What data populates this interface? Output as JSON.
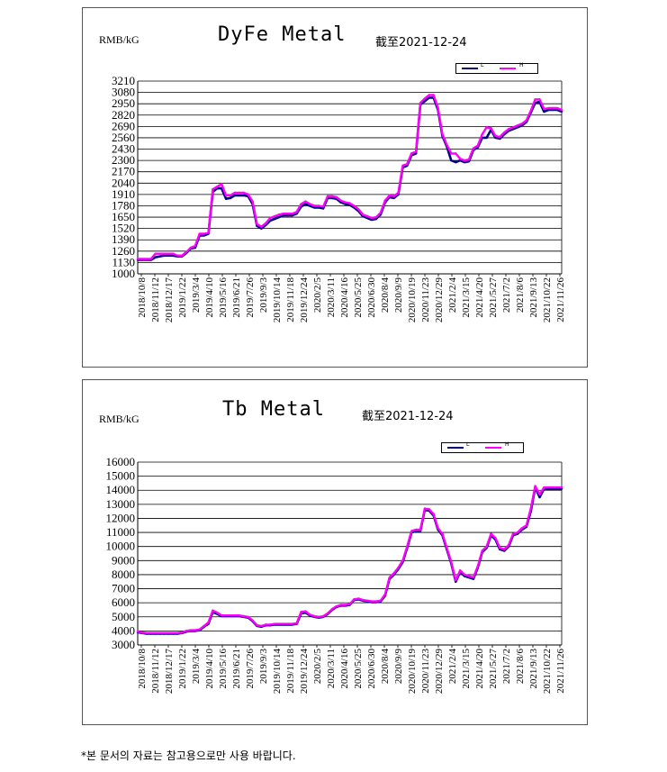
{
  "colors": {
    "L": "#000080",
    "H": "#ff00ff",
    "grid": "#000000",
    "axis": "#000000"
  },
  "footnote": "*본 문서의 자료는 참고용으로만 사용 바랍니다.",
  "chart_data": [
    {
      "type": "line",
      "title": "DyFe Metal",
      "unit_label": "RMB/kG",
      "as_of": "截至2021-12-24",
      "legend": [
        "L",
        "H"
      ],
      "ylim": [
        1000,
        3210
      ],
      "yticks": [
        1000,
        1130,
        1260,
        1390,
        1520,
        1650,
        1780,
        1910,
        2040,
        2170,
        2300,
        2430,
        2560,
        2690,
        2820,
        2950,
        3080,
        3210
      ],
      "xticks": [
        "2018/10/8",
        "2018/11/12",
        "2018/12/17",
        "2019/1/22",
        "2019/3/4",
        "2019/4/10",
        "2019/5/16",
        "2019/6/21",
        "2019/7/26",
        "2019/9/3",
        "2019/10/14",
        "2019/11/18",
        "2019/12/24",
        "2020/2/5",
        "2020/3/11",
        "2020/4/16",
        "2020/5/25",
        "2020/6/30",
        "2020/8/4",
        "2020/9/9",
        "2020/10/19",
        "2020/11/23",
        "2020/12/29",
        "2021/2/4",
        "2021/3/15",
        "2021/4/20",
        "2021/5/27",
        "2021/7/2",
        "2021/8/6",
        "2021/9/13",
        "2021/10/22",
        "2021/11/26"
      ],
      "x": [
        0,
        1,
        2,
        3,
        4,
        5,
        6,
        7,
        8,
        9,
        10,
        11,
        12,
        13,
        14,
        15,
        16,
        17,
        18,
        19,
        20,
        21,
        22,
        23,
        24,
        25,
        26,
        27,
        28,
        29,
        30,
        31,
        32,
        33,
        34,
        35,
        36,
        37,
        38,
        39,
        40,
        41,
        42,
        43,
        44,
        45,
        46,
        47,
        48,
        49,
        50,
        51,
        52,
        53,
        54,
        55,
        56,
        57,
        58,
        59,
        60,
        61,
        62,
        63,
        64,
        65,
        66,
        67,
        68,
        69,
        70,
        71,
        72,
        73,
        74,
        75,
        76,
        77,
        78,
        79,
        80,
        81,
        82,
        83,
        84,
        85,
        86,
        87,
        88,
        89,
        90,
        91,
        92,
        93,
        94,
        95,
        96
      ],
      "series": [
        {
          "name": "L",
          "values": [
            1160,
            1160,
            1160,
            1160,
            1190,
            1200,
            1210,
            1210,
            1210,
            1200,
            1200,
            1240,
            1290,
            1300,
            1440,
            1440,
            1460,
            1940,
            1980,
            1980,
            1860,
            1870,
            1900,
            1900,
            1900,
            1890,
            1800,
            1550,
            1520,
            1560,
            1610,
            1630,
            1650,
            1670,
            1670,
            1670,
            1690,
            1770,
            1800,
            1780,
            1760,
            1760,
            1750,
            1870,
            1870,
            1860,
            1820,
            1800,
            1790,
            1760,
            1720,
            1660,
            1640,
            1620,
            1630,
            1680,
            1820,
            1880,
            1870,
            1910,
            2220,
            2240,
            2360,
            2380,
            2940,
            2980,
            3020,
            3020,
            2880,
            2580,
            2460,
            2300,
            2280,
            2300,
            2280,
            2290,
            2420,
            2450,
            2560,
            2560,
            2650,
            2560,
            2550,
            2600,
            2640,
            2660,
            2680,
            2700,
            2740,
            2850,
            2960,
            2970,
            2860,
            2880,
            2880,
            2880,
            2860
          ]
        },
        {
          "name": "H",
          "values": [
            1170,
            1170,
            1170,
            1170,
            1230,
            1230,
            1230,
            1230,
            1230,
            1210,
            1210,
            1250,
            1300,
            1320,
            1460,
            1460,
            1470,
            1970,
            2000,
            2030,
            1900,
            1900,
            1930,
            1930,
            1930,
            1910,
            1830,
            1570,
            1540,
            1580,
            1640,
            1660,
            1680,
            1690,
            1690,
            1690,
            1710,
            1800,
            1830,
            1800,
            1780,
            1780,
            1770,
            1890,
            1890,
            1880,
            1840,
            1820,
            1810,
            1780,
            1740,
            1680,
            1660,
            1640,
            1650,
            1700,
            1840,
            1900,
            1890,
            1930,
            2240,
            2260,
            2380,
            2400,
            2960,
            3010,
            3050,
            3050,
            2900,
            2600,
            2480,
            2380,
            2380,
            2320,
            2300,
            2310,
            2440,
            2470,
            2600,
            2680,
            2670,
            2580,
            2570,
            2620,
            2660,
            2680,
            2700,
            2720,
            2760,
            2870,
            3000,
            3000,
            2890,
            2900,
            2900,
            2900,
            2880
          ]
        }
      ]
    },
    {
      "type": "line",
      "title": "Tb Metal",
      "unit_label": "RMB/kG",
      "as_of": "截至2021-12-24",
      "legend": [
        "L",
        "H"
      ],
      "ylim": [
        3000,
        16000
      ],
      "yticks": [
        3000,
        4000,
        5000,
        6000,
        7000,
        8000,
        9000,
        10000,
        11000,
        12000,
        13000,
        14000,
        15000,
        16000
      ],
      "xticks": [
        "2018/10/8",
        "2018/11/12",
        "2018/12/17",
        "2019/1/22",
        "2019/3/4",
        "2019/4/10",
        "2019/5/16",
        "2019/6/21",
        "2019/7/26",
        "2019/9/3",
        "2019/10/14",
        "2019/11/18",
        "2019/12/24",
        "2020/2/5",
        "2020/3/11",
        "2020/4/16",
        "2020/5/25",
        "2020/6/30",
        "2020/8/4",
        "2020/9/9",
        "2020/10/19",
        "2020/11/23",
        "2020/12/29",
        "2021/2/4",
        "2021/3/15",
        "2021/4/20",
        "2021/5/27",
        "2021/7/2",
        "2021/8/6",
        "2021/9/13",
        "2021/10/22",
        "2021/11/26"
      ],
      "x": [
        0,
        1,
        2,
        3,
        4,
        5,
        6,
        7,
        8,
        9,
        10,
        11,
        12,
        13,
        14,
        15,
        16,
        17,
        18,
        19,
        20,
        21,
        22,
        23,
        24,
        25,
        26,
        27,
        28,
        29,
        30,
        31,
        32,
        33,
        34,
        35,
        36,
        37,
        38,
        39,
        40,
        41,
        42,
        43,
        44,
        45,
        46,
        47,
        48,
        49,
        50,
        51,
        52,
        53,
        54,
        55,
        56,
        57,
        58,
        59,
        60,
        61,
        62,
        63,
        64,
        65,
        66,
        67,
        68,
        69,
        70,
        71,
        72,
        73,
        74,
        75,
        76,
        77,
        78,
        79,
        80,
        81,
        82,
        83,
        84,
        85,
        86,
        87,
        88,
        89,
        90,
        91,
        92,
        93,
        94,
        95,
        96
      ],
      "series": [
        {
          "name": "L",
          "values": [
            3900,
            3850,
            3800,
            3800,
            3800,
            3800,
            3800,
            3800,
            3800,
            3800,
            3850,
            3950,
            4000,
            4000,
            4050,
            4300,
            4500,
            5350,
            5200,
            5050,
            5050,
            5050,
            5050,
            5050,
            5000,
            4950,
            4700,
            4350,
            4300,
            4400,
            4400,
            4450,
            4450,
            4450,
            4450,
            4450,
            4500,
            5250,
            5300,
            5100,
            5000,
            4950,
            5000,
            5200,
            5500,
            5700,
            5800,
            5800,
            5850,
            6200,
            6250,
            6150,
            6100,
            6050,
            6050,
            6100,
            6500,
            7700,
            8000,
            8400,
            8900,
            9900,
            11000,
            11100,
            11100,
            12600,
            12550,
            12200,
            11200,
            10800,
            9800,
            8800,
            7500,
            8200,
            7900,
            7800,
            7700,
            8500,
            9600,
            9900,
            10800,
            10500,
            9800,
            9700,
            10000,
            10800,
            10900,
            11200,
            11400,
            12500,
            14200,
            13500,
            14100,
            14100,
            14100,
            14100,
            14100
          ]
        },
        {
          "name": "H",
          "values": [
            3950,
            3900,
            3850,
            3850,
            3850,
            3850,
            3850,
            3850,
            3850,
            3850,
            3900,
            4000,
            4050,
            4050,
            4100,
            4350,
            4600,
            5450,
            5300,
            5100,
            5100,
            5100,
            5100,
            5100,
            5050,
            5000,
            4750,
            4400,
            4350,
            4450,
            4450,
            4500,
            4500,
            4500,
            4500,
            4500,
            4550,
            5350,
            5400,
            5150,
            5050,
            5000,
            5050,
            5250,
            5550,
            5750,
            5850,
            5850,
            5900,
            6250,
            6300,
            6200,
            6150,
            6100,
            6100,
            6150,
            6600,
            7800,
            8100,
            8500,
            9000,
            10000,
            11100,
            11200,
            11200,
            12700,
            12650,
            12300,
            11300,
            10900,
            9900,
            8900,
            7600,
            8300,
            8000,
            7900,
            7800,
            8600,
            9700,
            10000,
            10900,
            10600,
            9900,
            9800,
            10100,
            10900,
            11000,
            11300,
            11500,
            12700,
            14300,
            13700,
            14200,
            14200,
            14200,
            14200,
            14200
          ]
        }
      ]
    }
  ]
}
